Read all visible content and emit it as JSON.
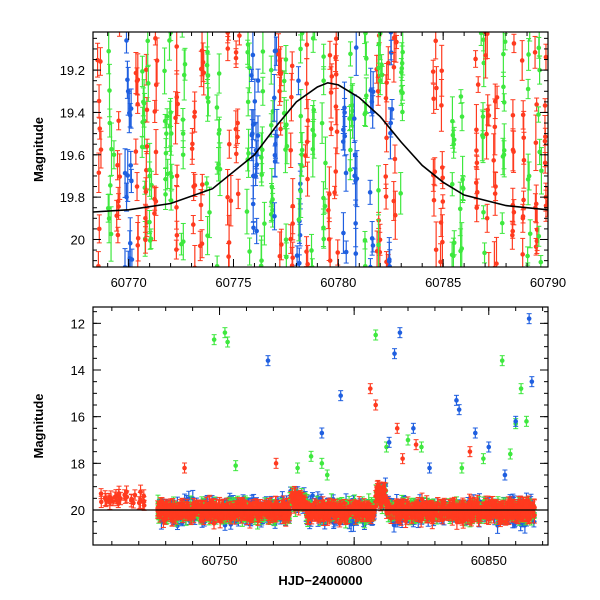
{
  "chart_data": [
    {
      "type": "scatter",
      "panel": "top",
      "title": "",
      "xlabel": "",
      "ylabel": "Magnitude",
      "xlim": [
        60768.3,
        60790
      ],
      "ylim": [
        20.13,
        19.02
      ],
      "y_inverted": true,
      "xticks": [
        60770,
        60775,
        60780,
        60785,
        60790
      ],
      "xtick_labels": [
        "60770",
        "60775",
        "60780",
        "60785",
        "60790"
      ],
      "yticks": [
        19.2,
        19.4,
        19.6,
        19.8,
        20
      ],
      "ytick_labels": [
        "19.2",
        "19.4",
        "19.6",
        "19.8",
        "20"
      ],
      "grid": false,
      "legend": "none",
      "colors": {
        "red": "#ff3a1f",
        "green": "#3ee83e",
        "blue": "#1f5fe0",
        "model": "#000000"
      },
      "model_curve": {
        "description": "black",
        "x": [
          60768.3,
          60770,
          60772,
          60774,
          60776,
          60777,
          60778,
          60779,
          60779.5,
          60780,
          60781,
          60782,
          60783,
          60784,
          60785,
          60786,
          60788,
          60790
        ],
        "y": [
          19.87,
          19.86,
          19.83,
          19.76,
          19.6,
          19.47,
          19.35,
          19.28,
          19.26,
          19.27,
          19.33,
          19.42,
          19.54,
          19.65,
          19.73,
          19.79,
          19.84,
          19.86
        ]
      },
      "series": [
        {
          "color": "red",
          "x": [
            60768.6,
            60769.5,
            60770.4,
            60770.8,
            60771.3,
            60772.3,
            60773.1,
            60773.5,
            60774.8,
            60775.2,
            60777.2,
            60777.8,
            60778.5,
            60779.6,
            60779.9,
            60781.9,
            60782.3,
            60782.7,
            60784.6,
            60784.9,
            60786.6,
            60787.1,
            60787.5,
            60788.3,
            60788.8,
            60789.4,
            60789.9
          ],
          "y": [
            19.95,
            19.82,
            19.75,
            19.9,
            19.82,
            19.98,
            19.75,
            20.02,
            19.55,
            19.45,
            19.3,
            19.18,
            19.08,
            19.13,
            19.22,
            19.3,
            19.52,
            19.62,
            19.68,
            19.92,
            19.85,
            19.9,
            19.75,
            19.98,
            19.9,
            19.85,
            19.8
          ]
        },
        {
          "color": "green",
          "x": [
            60769.1,
            60769.3,
            60770.7,
            60771.0,
            60771.8,
            60772.0,
            60772.6,
            60773.8,
            60774.3,
            60775.7,
            60776.4,
            60776.8,
            60777.5,
            60778.2,
            60778.8,
            60779.3,
            60780.6,
            60781.3,
            60782.0,
            60783.0,
            60785.5,
            60785.9,
            60786.9,
            60787.9,
            60789.1,
            60789.6
          ],
          "y": [
            19.45,
            19.6,
            19.35,
            19.7,
            19.5,
            19.4,
            19.6,
            19.35,
            19.5,
            19.35,
            19.3,
            19.2,
            19.15,
            19.1,
            19.05,
            19.25,
            19.3,
            19.4,
            19.25,
            19.3,
            19.55,
            19.42,
            19.42,
            19.6,
            19.7,
            19.2
          ]
        },
        {
          "color": "blue",
          "x": [
            60769.9,
            60770.1,
            60775.9,
            60776.1,
            60777.0,
            60778.1,
            60780.3,
            60780.8,
            60781.6,
            60782.5
          ],
          "y": [
            19.8,
            19.65,
            19.5,
            19.6,
            19.55,
            19.25,
            19.4,
            19.6,
            19.35,
            19.45
          ]
        }
      ]
    },
    {
      "type": "scatter",
      "panel": "bottom",
      "title": "",
      "xlabel": "HJD−2400000",
      "ylabel": "Magnitude",
      "xlim": [
        60703,
        60872
      ],
      "ylim": [
        21.5,
        11.3
      ],
      "y_inverted": true,
      "xticks": [
        60750,
        60800,
        60850
      ],
      "xtick_labels": [
        "60750",
        "60800",
        "60850"
      ],
      "yticks": [
        12,
        14,
        16,
        18,
        20
      ],
      "ytick_labels": [
        "12",
        "14",
        "16",
        "18",
        "20"
      ],
      "grid": false,
      "legend": "none",
      "colors": {
        "red": "#ff3a1f",
        "green": "#3ee83e",
        "blue": "#1f5fe0",
        "model": "#000000"
      },
      "model_baseline": 20.0,
      "series": [
        {
          "color": "green",
          "x": [
            60748,
            60752,
            60753,
            60756,
            60779,
            60784,
            60788,
            60790,
            60808,
            60812,
            60820,
            60825,
            60840,
            60848,
            60855,
            60858,
            60860,
            60862,
            60864
          ],
          "y": [
            12.7,
            12.4,
            12.8,
            18.1,
            18.2,
            17.7,
            18.0,
            18.5,
            12.5,
            17.3,
            17.0,
            17.3,
            18.2,
            17.8,
            13.6,
            17.6,
            16.3,
            14.8,
            16.2
          ]
        },
        {
          "color": "blue",
          "x": [
            60768,
            60788,
            60795,
            60813,
            60815,
            60817,
            60822,
            60828,
            60838,
            60839,
            60845,
            60850,
            60856,
            60860,
            60865,
            60866
          ],
          "y": [
            13.6,
            16.7,
            15.1,
            17.1,
            13.3,
            12.4,
            16.5,
            18.2,
            15.3,
            15.7,
            16.7,
            17.3,
            18.5,
            16.2,
            11.8,
            14.5
          ]
        },
        {
          "color": "red",
          "x": [
            60706,
            60709,
            60712,
            60715,
            60718,
            60722,
            60737,
            60771,
            60806,
            60808,
            60816,
            60818,
            60823,
            60843
          ],
          "y": [
            19.3,
            19.5,
            19.6,
            19.5,
            19.7,
            19.8,
            18.2,
            18.0,
            14.8,
            15.5,
            16.5,
            17.8,
            17.2,
            17.5
          ]
        }
      ]
    }
  ]
}
